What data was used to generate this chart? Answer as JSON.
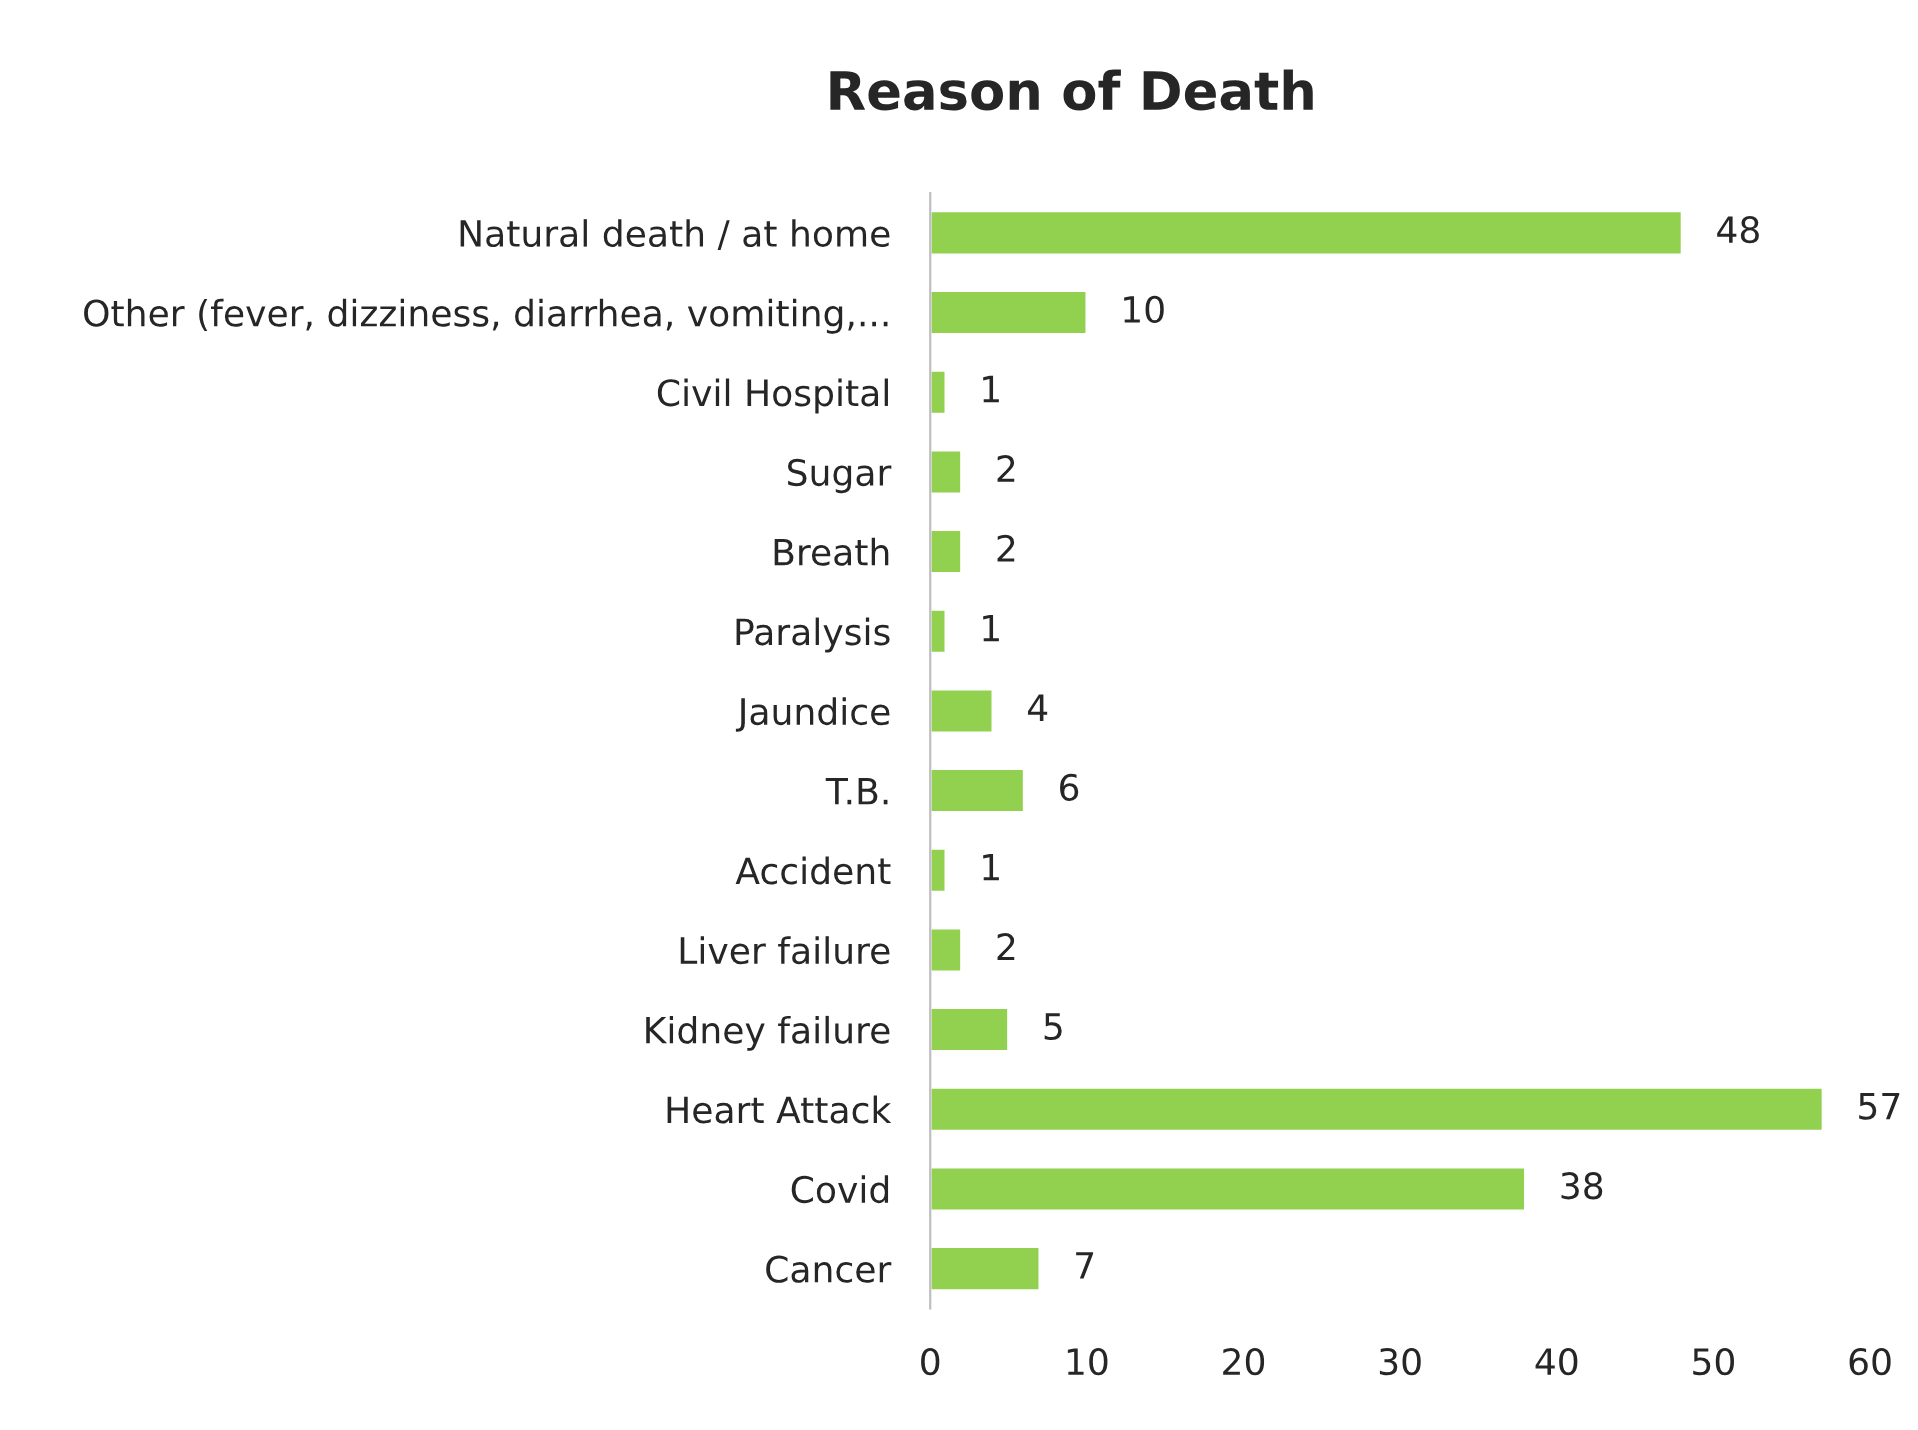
{
  "chart_data": {
    "type": "bar",
    "orientation": "horizontal",
    "title": "Reason of Death",
    "categories": [
      "Natural death / at home",
      "Other (fever, dizziness, diarrhea, vomiting,...",
      "Civil Hospital",
      "Sugar",
      "Breath",
      "Paralysis",
      "Jaundice",
      "T.B.",
      "Accident",
      "Liver failure",
      "Kidney failure",
      "Heart Attack",
      "Covid",
      "Cancer"
    ],
    "values": [
      48,
      10,
      1,
      2,
      2,
      1,
      4,
      6,
      1,
      2,
      5,
      57,
      38,
      7
    ],
    "color": "#92d050",
    "xlim": [
      0,
      60
    ],
    "xticks": [
      0,
      10,
      20,
      30,
      40,
      50,
      60
    ],
    "grid": false,
    "data_labels": true
  }
}
